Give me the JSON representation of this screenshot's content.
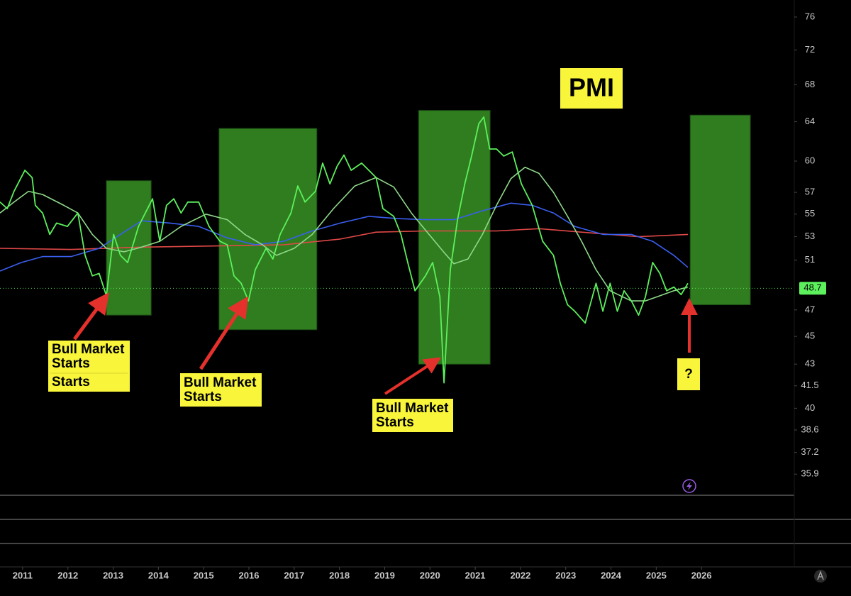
{
  "chart_data": {
    "type": "line",
    "title": "PMI",
    "log_scale": true,
    "xlim": [
      2010.5,
      2028.05
    ],
    "xticks": [
      2011,
      2012,
      2013,
      2014,
      2015,
      2016,
      2017,
      2018,
      2019,
      2020,
      2021,
      2022,
      2023,
      2024,
      2025,
      2026
    ],
    "ylim": [
      34.8,
      78.15
    ],
    "yticks": [
      76,
      72,
      68,
      64,
      60,
      57,
      55,
      53,
      51,
      47,
      45,
      43,
      41.5,
      40,
      38.6,
      37.2,
      35.9
    ],
    "series": [
      {
        "color": "#5cf05c",
        "x": [
          2010.5,
          2010.66,
          2010.81,
          2011.05,
          2011.21,
          2011.28,
          2011.44,
          2011.6,
          2011.75,
          2011.99,
          2012.22,
          2012.38,
          2012.54,
          2012.69,
          2012.85,
          2013.01,
          2013.16,
          2013.32,
          2013.56,
          2013.71,
          2013.87,
          2014.03,
          2014.18,
          2014.34,
          2014.5,
          2014.65,
          2014.89,
          2015.12,
          2015.36,
          2015.52,
          2015.67,
          2015.83,
          2015.99,
          2016.14,
          2016.38,
          2016.53,
          2016.69,
          2016.93,
          2017.08,
          2017.24,
          2017.47,
          2017.63,
          2017.79,
          2017.95,
          2018.1,
          2018.26,
          2018.49,
          2018.65,
          2018.81,
          2018.96,
          2019.2,
          2019.36,
          2019.51,
          2019.67,
          2019.9,
          2020.06,
          2020.22,
          2020.31,
          2020.45,
          2020.61,
          2020.77,
          2020.92,
          2021.08,
          2021.19,
          2021.32,
          2021.47,
          2021.63,
          2021.82,
          2022.02,
          2022.26,
          2022.49,
          2022.73,
          2022.88,
          2023.04,
          2023.2,
          2023.43,
          2023.67,
          2023.82,
          2023.98,
          2024.14,
          2024.29,
          2024.45,
          2024.61,
          2024.76,
          2024.92,
          2025.08,
          2025.23,
          2025.39,
          2025.55,
          2025.7
        ],
        "values": [
          56.1,
          55.5,
          57.1,
          59.1,
          58.4,
          55.8,
          55.1,
          53.2,
          54.2,
          53.9,
          55.1,
          51.4,
          49.7,
          49.9,
          48.1,
          53.2,
          51.4,
          50.8,
          53.9,
          55.1,
          56.4,
          52.6,
          55.8,
          56.4,
          55.1,
          56.1,
          56.1,
          53.9,
          52.6,
          52.3,
          49.7,
          49.1,
          47.7,
          50.2,
          52.0,
          51.1,
          53.2,
          55.1,
          57.6,
          56.1,
          57.1,
          59.8,
          57.8,
          59.5,
          60.6,
          59.1,
          59.8,
          59.1,
          58.4,
          55.5,
          54.8,
          53.2,
          50.8,
          48.5,
          49.7,
          50.8,
          48.0,
          41.7,
          50.2,
          54.5,
          57.8,
          60.5,
          63.8,
          64.5,
          61.2,
          61.2,
          60.5,
          60.9,
          57.8,
          55.8,
          52.6,
          51.4,
          49.1,
          47.4,
          46.9,
          46.0,
          49.1,
          46.9,
          49.1,
          46.9,
          48.5,
          47.7,
          46.6,
          48.0,
          50.8,
          49.9,
          48.5,
          48.8,
          48.2,
          49.1
        ]
      },
      {
        "color": "#8fd88a",
        "x": [
          2010.5,
          2010.81,
          2011.13,
          2011.44,
          2011.91,
          2012.22,
          2012.54,
          2012.85,
          2013.24,
          2013.63,
          2014.03,
          2014.5,
          2015.05,
          2015.52,
          2015.91,
          2016.3,
          2016.61,
          2017.0,
          2017.4,
          2017.87,
          2018.34,
          2018.81,
          2019.2,
          2019.59,
          2019.98,
          2020.3,
          2020.53,
          2020.84,
          2021.16,
          2021.47,
          2021.79,
          2022.1,
          2022.41,
          2022.73,
          2023.04,
          2023.35,
          2023.67,
          2023.98,
          2024.45,
          2024.76,
          2025.08,
          2025.39,
          2025.7
        ],
        "values": [
          55.1,
          56.1,
          57.1,
          56.8,
          55.8,
          55.1,
          53.2,
          52.0,
          51.7,
          52.1,
          52.6,
          53.9,
          55.0,
          54.5,
          53.2,
          52.3,
          51.4,
          52.0,
          53.2,
          55.5,
          57.6,
          58.4,
          57.5,
          55.1,
          53.2,
          51.7,
          50.7,
          51.1,
          53.2,
          55.8,
          58.3,
          59.4,
          58.8,
          57.0,
          54.8,
          52.6,
          50.2,
          48.5,
          47.7,
          47.7,
          48.1,
          48.5,
          48.8
        ]
      },
      {
        "color": "#3a5ff0",
        "x": [
          2010.5,
          2010.97,
          2011.44,
          2012.07,
          2012.69,
          2013.16,
          2013.63,
          2014.26,
          2014.89,
          2015.52,
          2016.14,
          2016.77,
          2017.4,
          2018.02,
          2018.65,
          2019.28,
          2019.9,
          2020.53,
          2021.16,
          2021.79,
          2022.26,
          2022.73,
          2023.2,
          2023.82,
          2024.45,
          2024.92,
          2025.39,
          2025.7
        ],
        "values": [
          50.1,
          50.8,
          51.3,
          51.3,
          52.0,
          53.2,
          54.4,
          54.2,
          53.9,
          52.9,
          52.3,
          52.6,
          53.5,
          54.2,
          54.8,
          54.6,
          54.5,
          54.5,
          55.3,
          56.0,
          55.8,
          55.1,
          53.9,
          53.2,
          53.2,
          52.6,
          51.4,
          50.4
        ]
      },
      {
        "color": "#e04848",
        "x": [
          2010.5,
          2012.07,
          2013.63,
          2015.2,
          2016.77,
          2018.02,
          2018.81,
          2019.9,
          2021.47,
          2022.41,
          2023.35,
          2024.61,
          2025.7
        ],
        "values": [
          52.0,
          51.9,
          52.1,
          52.2,
          52.3,
          52.8,
          53.4,
          53.5,
          53.5,
          53.7,
          53.4,
          53.0,
          53.2
        ]
      }
    ],
    "highlight_color": "#2f7d1f",
    "highlight_boxes": [
      {
        "x": [
          2012.85,
          2013.84
        ],
        "y": [
          46.6,
          58.1
        ]
      },
      {
        "x": [
          2015.34,
          2017.5
        ],
        "y": [
          45.5,
          63.3
        ]
      },
      {
        "x": [
          2019.75,
          2021.33
        ],
        "y": [
          43.0,
          65.2
        ]
      },
      {
        "x": [
          2025.75,
          2027.08
        ],
        "y": [
          47.4,
          64.7
        ]
      }
    ],
    "last_value": 48.7,
    "annotations": [
      [
        "Bull Market",
        "Starts",
        "Starts"
      ],
      [
        "Bull Market",
        "Starts"
      ],
      [
        "Bull Market",
        "Starts"
      ],
      [
        "?"
      ]
    ]
  }
}
